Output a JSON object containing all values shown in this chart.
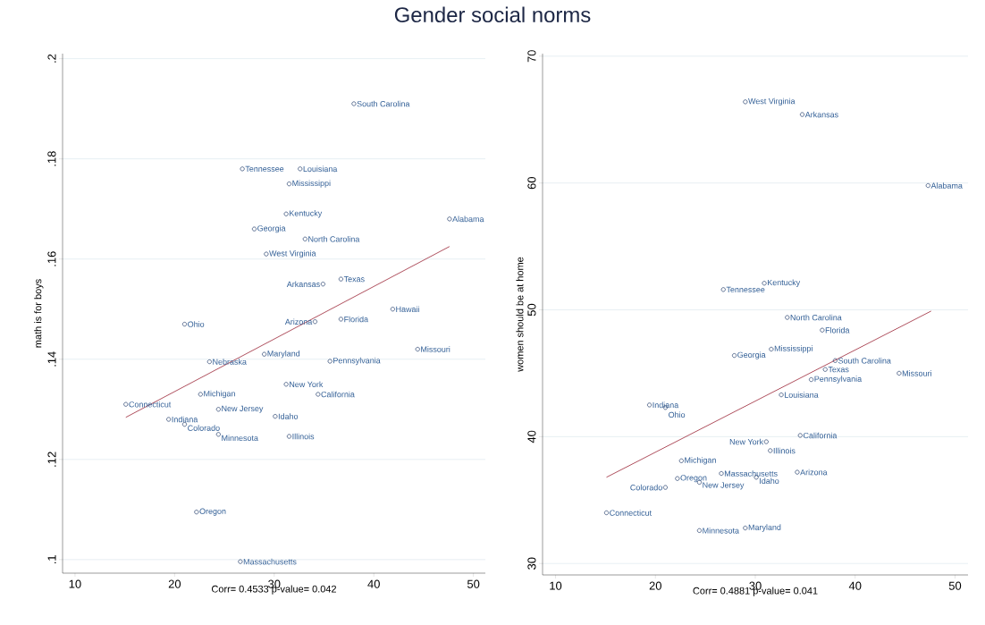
{
  "chart_data": [
    {
      "type": "scatter",
      "title": "Gender social norms",
      "xlabel": "Corr=  0.4533 p-value=      0.042",
      "ylabel": "math is for boys",
      "xlim": [
        8.75,
        51.2
      ],
      "ylim": [
        0.0973,
        0.201
      ],
      "xticks": [
        10,
        20,
        30,
        40,
        50
      ],
      "yticks": [
        {
          "value": 0.1,
          "label": ".1"
        },
        {
          "value": 0.12,
          "label": ".12"
        },
        {
          "value": 0.14,
          "label": ".14"
        },
        {
          "value": 0.16,
          "label": ".16"
        },
        {
          "value": 0.18,
          "label": ".18"
        },
        {
          "value": 0.2,
          "label": ".2"
        }
      ],
      "grid": "y",
      "series": [
        {
          "marker": "circle",
          "color": "#1f3a68",
          "x": [
            38.0,
            26.8,
            32.6,
            31.5,
            31.2,
            28.0,
            33.1,
            29.2,
            47.6,
            36.7,
            34.9,
            41.9,
            36.7,
            34.1,
            21.0,
            44.4,
            29.0,
            23.5,
            35.6,
            31.2,
            22.6,
            34.4,
            15.1,
            24.4,
            30.1,
            19.4,
            21.0,
            24.4,
            31.5,
            22.2,
            26.6
          ],
          "values": [
            0.191,
            0.178,
            0.178,
            0.175,
            0.169,
            0.166,
            0.164,
            0.161,
            0.168,
            0.156,
            0.155,
            0.15,
            0.148,
            0.1475,
            0.147,
            0.142,
            0.141,
            0.1395,
            0.1396,
            0.135,
            0.133,
            0.133,
            0.131,
            0.13,
            0.1286,
            0.128,
            0.127,
            0.125,
            0.1246,
            0.1095,
            0.0996
          ]
        },
        {
          "type": "line",
          "color": "#9b2335",
          "x": [
            15.1,
            47.6
          ],
          "values": [
            0.1284,
            0.1625
          ]
        }
      ],
      "annotations": [
        {
          "text": "South Carolina",
          "x": 38.0,
          "y": 0.191
        },
        {
          "text": "Tennessee",
          "x": 26.8,
          "y": 0.178
        },
        {
          "text": "Louisiana",
          "x": 32.6,
          "y": 0.178
        },
        {
          "text": "Mississippi",
          "x": 31.5,
          "y": 0.175
        },
        {
          "text": "Kentucky",
          "x": 31.2,
          "y": 0.169
        },
        {
          "text": "Georgia",
          "x": 28.0,
          "y": 0.166
        },
        {
          "text": "North Carolina",
          "x": 33.1,
          "y": 0.164
        },
        {
          "text": "West Virginia",
          "x": 29.2,
          "y": 0.161
        },
        {
          "text": "Alabama",
          "x": 47.6,
          "y": 0.168
        },
        {
          "text": "Texas",
          "x": 36.7,
          "y": 0.156
        },
        {
          "text": "Arkansas",
          "x": 34.9,
          "y": 0.155
        },
        {
          "text": "Hawaii",
          "x": 41.9,
          "y": 0.15
        },
        {
          "text": "Florida",
          "x": 36.7,
          "y": 0.148
        },
        {
          "text": "Arizona",
          "x": 34.1,
          "y": 0.1475
        },
        {
          "text": "Ohio",
          "x": 21.0,
          "y": 0.147
        },
        {
          "text": "Missouri",
          "x": 44.4,
          "y": 0.142
        },
        {
          "text": "Maryland",
          "x": 29.0,
          "y": 0.141
        },
        {
          "text": "Nebraska",
          "x": 23.5,
          "y": 0.1395
        },
        {
          "text": "Pennsylvania",
          "x": 35.6,
          "y": 0.1396
        },
        {
          "text": "New York",
          "x": 31.2,
          "y": 0.135
        },
        {
          "text": "Michigan",
          "x": 22.6,
          "y": 0.133
        },
        {
          "text": "California",
          "x": 34.4,
          "y": 0.133
        },
        {
          "text": "Connecticut",
          "x": 15.1,
          "y": 0.131
        },
        {
          "text": "New Jersey",
          "x": 24.4,
          "y": 0.13
        },
        {
          "text": "Idaho",
          "x": 30.1,
          "y": 0.1286
        },
        {
          "text": "Indiana",
          "x": 19.4,
          "y": 0.128
        },
        {
          "text": "Colorado",
          "x": 21.0,
          "y": 0.127
        },
        {
          "text": "Minnesota",
          "x": 24.4,
          "y": 0.125
        },
        {
          "text": "Illinois",
          "x": 31.5,
          "y": 0.1246
        },
        {
          "text": "Oregon",
          "x": 22.2,
          "y": 0.1095
        },
        {
          "text": "Massachusetts",
          "x": 26.6,
          "y": 0.0996
        }
      ]
    },
    {
      "type": "scatter",
      "xlabel": "Corr=  0.4881  p-value=      0.041",
      "ylabel": "women should be at home",
      "xlim": [
        8.7,
        51.3
      ],
      "ylim": [
        29.1,
        70.2
      ],
      "xticks": [
        10,
        20,
        30,
        40,
        50
      ],
      "yticks": [
        30,
        40,
        50,
        60,
        70
      ],
      "grid": "y",
      "series": [
        {
          "marker": "circle",
          "color": "#1f3a68",
          "x": [
            29.0,
            34.7,
            47.3,
            30.9,
            26.8,
            33.2,
            36.7,
            31.6,
            27.9,
            38.0,
            37.0,
            44.4,
            35.6,
            32.6,
            19.4,
            21.0,
            34.5,
            31.1,
            31.5,
            22.6,
            26.6,
            34.2,
            22.2,
            24.4,
            30.1,
            21.0,
            15.1,
            24.4,
            29.0
          ],
          "values": [
            66.4,
            65.4,
            59.8,
            52.1,
            51.6,
            49.4,
            48.4,
            46.9,
            46.4,
            46.0,
            45.3,
            45.0,
            44.5,
            43.3,
            42.5,
            42.3,
            40.1,
            39.6,
            38.9,
            38.1,
            37.1,
            37.2,
            36.7,
            36.4,
            36.8,
            36.0,
            34.0,
            32.6,
            32.8
          ]
        },
        {
          "type": "line",
          "color": "#9b2335",
          "x": [
            15.1,
            47.6
          ],
          "values": [
            36.8,
            49.9
          ]
        }
      ],
      "annotations": [
        {
          "text": "West Virginia",
          "x": 29.0,
          "y": 66.4
        },
        {
          "text": "Arkansas",
          "x": 34.7,
          "y": 65.4
        },
        {
          "text": "Alabama",
          "x": 47.3,
          "y": 59.8
        },
        {
          "text": "Kentucky",
          "x": 30.9,
          "y": 52.1
        },
        {
          "text": "Tennessee",
          "x": 26.8,
          "y": 51.6
        },
        {
          "text": "North Carolina",
          "x": 33.2,
          "y": 49.4
        },
        {
          "text": "Florida",
          "x": 36.7,
          "y": 48.4
        },
        {
          "text": "Mississippi",
          "x": 31.6,
          "y": 46.9
        },
        {
          "text": "Georgia",
          "x": 27.9,
          "y": 46.4
        },
        {
          "text": "South Carolina",
          "x": 38.0,
          "y": 46.0
        },
        {
          "text": "Texas",
          "x": 37.0,
          "y": 45.3
        },
        {
          "text": "Missouri",
          "x": 44.4,
          "y": 45.0
        },
        {
          "text": "Pennsylvania",
          "x": 35.6,
          "y": 44.5
        },
        {
          "text": "Louisiana",
          "x": 32.6,
          "y": 43.3
        },
        {
          "text": "Indiana",
          "x": 19.4,
          "y": 42.5
        },
        {
          "text": "Ohio",
          "x": 21.0,
          "y": 42.3
        },
        {
          "text": "California",
          "x": 34.5,
          "y": 40.1
        },
        {
          "text": "New York",
          "x": 31.1,
          "y": 39.6
        },
        {
          "text": "Illinois",
          "x": 31.5,
          "y": 38.9
        },
        {
          "text": "Michigan",
          "x": 22.6,
          "y": 38.1
        },
        {
          "text": "Massachusetts",
          "x": 26.6,
          "y": 37.1
        },
        {
          "text": "Arizona",
          "x": 34.2,
          "y": 37.2
        },
        {
          "text": "Oregon",
          "x": 22.2,
          "y": 36.7
        },
        {
          "text": "New Jersey",
          "x": 24.4,
          "y": 36.4
        },
        {
          "text": "Idaho",
          "x": 30.1,
          "y": 36.8
        },
        {
          "text": "Colorado",
          "x": 21.0,
          "y": 36.0
        },
        {
          "text": "Connecticut",
          "x": 15.1,
          "y": 34.0
        },
        {
          "text": "Minnesota",
          "x": 24.4,
          "y": 32.6
        },
        {
          "text": "Maryland",
          "x": 29.0,
          "y": 32.8
        }
      ]
    }
  ]
}
